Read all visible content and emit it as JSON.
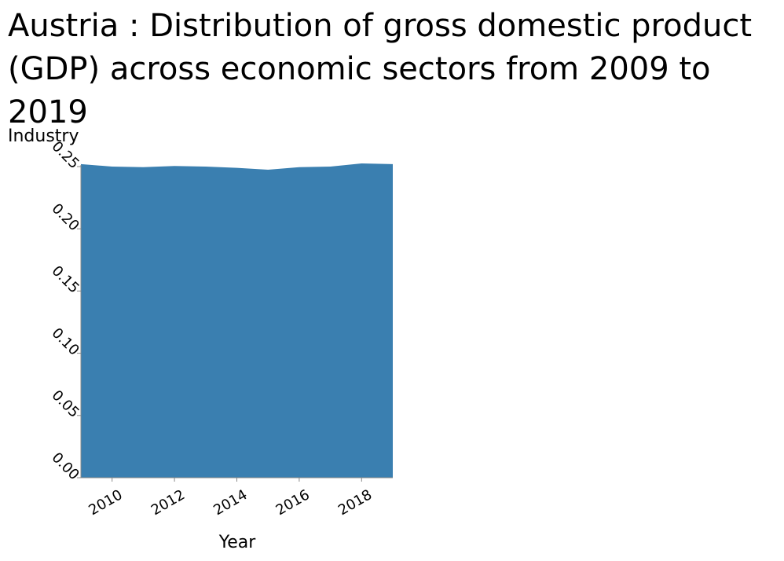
{
  "chart_data": {
    "type": "area",
    "title": "Austria : Distribution of gross domestic product (GDP) across economic sectors from 2009 to 2019",
    "xlabel": "Year",
    "ylabel": "Industry",
    "x": [
      2009,
      2010,
      2011,
      2012,
      2013,
      2014,
      2015,
      2016,
      2017,
      2018,
      2019
    ],
    "series": [
      {
        "values": [
          0.252,
          0.25,
          0.2495,
          0.2505,
          0.25,
          0.249,
          0.2475,
          0.2495,
          0.25,
          0.2525,
          0.252
        ]
      }
    ],
    "xlim": [
      2009,
      2019
    ],
    "ylim": [
      0,
      0.25
    ],
    "xticks": [
      "2010",
      "2012",
      "2014",
      "2016",
      "2018"
    ],
    "yticks": [
      "0.00",
      "0.05",
      "0.10",
      "0.15",
      "0.20",
      "0.25"
    ],
    "grid": false,
    "area_color": "#3a7fb0"
  }
}
